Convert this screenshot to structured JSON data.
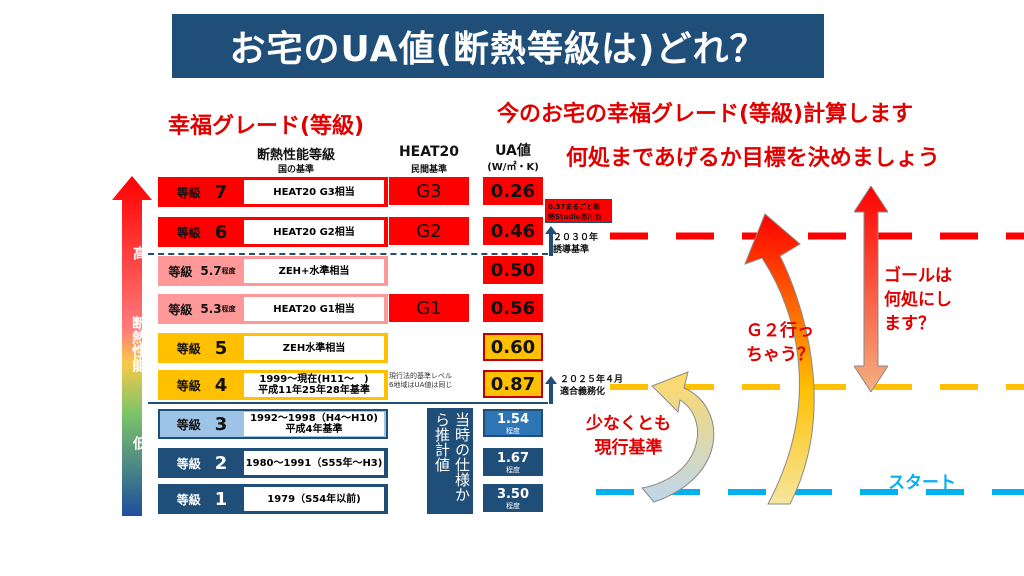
{
  "title": "お宅のUA値(断熱等級は)どれ？",
  "left_heading": "幸福グレード(等級)",
  "right_heading_1": "今のお宅の幸福グレード(等級)計算します",
  "right_heading_2": "何処まであげるか目標を決めましょう",
  "columns": {
    "grade_title": "断熱性能等級",
    "grade_sub": "国の基準",
    "heat_title": "HEAT20",
    "heat_sub": "民間基準",
    "ua_title": "UA値",
    "ua_unit": "(W/㎡・K)"
  },
  "axis": {
    "high": "高",
    "mid": "断熱性能",
    "low": "低"
  },
  "levels": [
    {
      "label": "等級",
      "num": "7",
      "suffix": "",
      "desc": "HEAT20 G3相当",
      "heat": "G3",
      "ua": "0.26",
      "ua_sub": ""
    },
    {
      "label": "等級",
      "num": "6",
      "suffix": "",
      "desc": "HEAT20 G2相当",
      "heat": "G2",
      "ua": "0.46",
      "ua_sub": ""
    },
    {
      "label": "等級",
      "num": "5.7",
      "suffix": "程度",
      "desc": "ZEH+水準相当",
      "heat": "",
      "ua": "0.50",
      "ua_sub": ""
    },
    {
      "label": "等級",
      "num": "5.3",
      "suffix": "程度",
      "desc": "HEAT20 G1相当",
      "heat": "G1",
      "ua": "0.56",
      "ua_sub": ""
    },
    {
      "label": "等級",
      "num": "5",
      "suffix": "",
      "desc": "ZEH水準相当",
      "heat": "",
      "ua": "0.60",
      "ua_sub": ""
    },
    {
      "label": "等級",
      "num": "4",
      "suffix": "",
      "desc": "1999～現在(H11～　)\n平成11年25年28年基準",
      "heat": "",
      "ua": "0.87",
      "ua_sub": ""
    },
    {
      "label": "等級",
      "num": "3",
      "suffix": "",
      "desc": "1992～1998（H4～H10)\n平成4年基準",
      "heat": "",
      "ua": "1.54",
      "ua_sub": "程度"
    },
    {
      "label": "等級",
      "num": "2",
      "suffix": "",
      "desc": "1980～1991（S55年～H3)",
      "heat": "",
      "ua": "1.67",
      "ua_sub": "程度"
    },
    {
      "label": "等級",
      "num": "1",
      "suffix": "",
      "desc": "1979（S54年以前)",
      "heat": "",
      "ua": "3.50",
      "ua_sub": "程度"
    }
  ],
  "current_note": "現行法的基準レベル\n6地域はUA値は同じ",
  "estimate_text": "当時の仕様から推計値",
  "marker_2030": "２０３０年\n誘導基準",
  "marker_2025": "２０２５年４月\n適合義務化",
  "studio_note": "0.37まるごと断\n熱Studio赤川台",
  "goal_text": "ゴールは\n何処にし\nます？",
  "g2_text": "Ｇ２行っ\nちゃう？",
  "min_text": "少なくとも\n現行基準",
  "start_text": "スタート",
  "colors": {
    "navy": "#1f4e79",
    "red": "#ff0000",
    "orange": "#ffc000",
    "pink": "#ff9999",
    "blue": "#00b0f0"
  }
}
